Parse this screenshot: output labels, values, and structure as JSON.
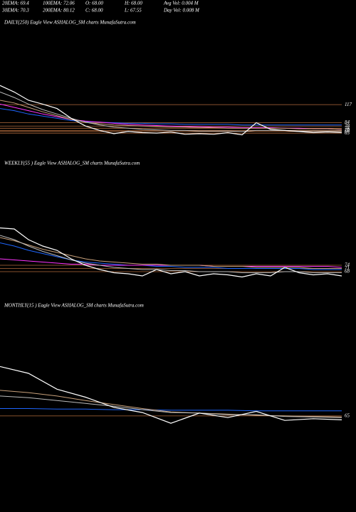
{
  "header": {
    "lines": [
      [
        "20EMA: 69.4",
        "100EMA: 72.06",
        "O: 68.00",
        "H: 68.00",
        "Avg Vol: 0.004  M"
      ],
      [
        "30EMA: 70.3",
        "200EMA: 80.12",
        "C: 68.00",
        "L: 67.55",
        "Day Vol: 0.008  M"
      ]
    ]
  },
  "chart_data": [
    {
      "type": "line",
      "title": "DAILY(250) Eagle  View  ASHALOG_SM charts MunafaSutra.com",
      "ylim": [
        29,
        256
      ],
      "yticks": [
        117,
        84,
        78,
        74,
        70,
        68,
        65
      ],
      "grid": true,
      "grid_color": "#b36b3c",
      "series": [
        {
          "color": "#1e66ff",
          "values": [
            110,
            106,
            100,
            96,
            92,
            88,
            86,
            85,
            84,
            83,
            83,
            82,
            82,
            81,
            81,
            81,
            81,
            80,
            80,
            80,
            80,
            80,
            80,
            80,
            80
          ]
        },
        {
          "color": "#ff33ff",
          "values": [
            118,
            112,
            106,
            100,
            95,
            90,
            87,
            85,
            83,
            81,
            80,
            79,
            78,
            77,
            77,
            76,
            76,
            75,
            75,
            75,
            74,
            74,
            73,
            73,
            72
          ]
        },
        {
          "color": "#c8a07a",
          "values": [
            125,
            120,
            112,
            104,
            97,
            90,
            85,
            82,
            80,
            79,
            78,
            77,
            76,
            76,
            75,
            75,
            74,
            74,
            74,
            74,
            74,
            73,
            73,
            73,
            72
          ]
        },
        {
          "color": "#bbbbbb",
          "values": [
            140,
            130,
            118,
            108,
            100,
            92,
            85,
            80,
            76,
            74,
            72,
            71,
            70,
            70,
            69,
            69,
            69,
            68,
            70,
            70,
            70,
            69,
            69,
            69,
            69
          ]
        },
        {
          "color": "#ffffff",
          "values": [
            152,
            140,
            125,
            118,
            110,
            92,
            78,
            70,
            64,
            68,
            66,
            65,
            67,
            63,
            64,
            63,
            66,
            62,
            84,
            72,
            70,
            68,
            66,
            67,
            66
          ]
        }
      ]
    },
    {
      "type": "line",
      "title": "WEEKLY(55 ) Eagle  View  ASHALOG_SM charts MunafaSutra.com",
      "ylim": [
        56,
        156
      ],
      "yticks": [
        74,
        71,
        68
      ],
      "grid": true,
      "grid_color": "#b36b3c",
      "series": [
        {
          "color": "#1e66ff",
          "values": [
            95,
            92,
            88,
            85,
            82,
            79,
            77,
            76,
            75,
            74,
            74,
            73,
            73,
            72,
            72,
            72,
            71,
            71,
            71,
            71,
            71,
            71,
            70,
            70,
            70
          ]
        },
        {
          "color": "#ff33ff",
          "values": [
            80,
            79,
            78,
            77,
            76,
            75,
            75,
            74,
            74,
            74,
            74,
            74,
            74,
            74,
            74,
            73,
            73,
            73,
            73,
            73,
            73,
            73,
            73,
            73,
            72
          ]
        },
        {
          "color": "#c8a07a",
          "values": [
            100,
            97,
            93,
            89,
            86,
            83,
            80,
            78,
            77,
            76,
            75,
            75,
            74,
            74,
            74,
            73,
            73,
            73,
            72,
            72,
            72,
            72,
            71,
            71,
            71
          ]
        },
        {
          "color": "#bbbbbb",
          "values": [
            102,
            98,
            92,
            87,
            83,
            79,
            76,
            74,
            72,
            71,
            70,
            70,
            69,
            69,
            68,
            68,
            68,
            67,
            67,
            67,
            68,
            68,
            67,
            67,
            67
          ]
        },
        {
          "color": "#ffffff",
          "values": [
            109,
            108,
            98,
            92,
            88,
            80,
            74,
            70,
            67,
            66,
            64,
            70,
            66,
            68,
            64,
            66,
            65,
            63,
            66,
            64,
            72,
            67,
            65,
            66,
            64
          ]
        }
      ]
    },
    {
      "type": "line",
      "title": "MONTHLY(15 ) Eagle  View  ASHALOG_SM charts MunafaSutra.com",
      "ylim": [
        46,
        234
      ],
      "yticks": [
        65
      ],
      "grid": true,
      "grid_color": "#b36b3c",
      "series": [
        {
          "color": "#1e66ff",
          "values": [
            78,
            78,
            77,
            77,
            76,
            76,
            75,
            75,
            75,
            74,
            74,
            74,
            74
          ]
        },
        {
          "color": "#c8a07a",
          "values": [
            110,
            106,
            100,
            92,
            85,
            78,
            72,
            70,
            68,
            66,
            65,
            64,
            63
          ]
        },
        {
          "color": "#bbbbbb",
          "values": [
            100,
            97,
            92,
            87,
            82,
            76,
            71,
            70,
            67,
            67,
            64,
            63,
            62
          ]
        },
        {
          "color": "#ffffff",
          "values": [
            152,
            140,
            112,
            98,
            80,
            71,
            52,
            70,
            62,
            73,
            57,
            60,
            58
          ]
        }
      ]
    }
  ]
}
